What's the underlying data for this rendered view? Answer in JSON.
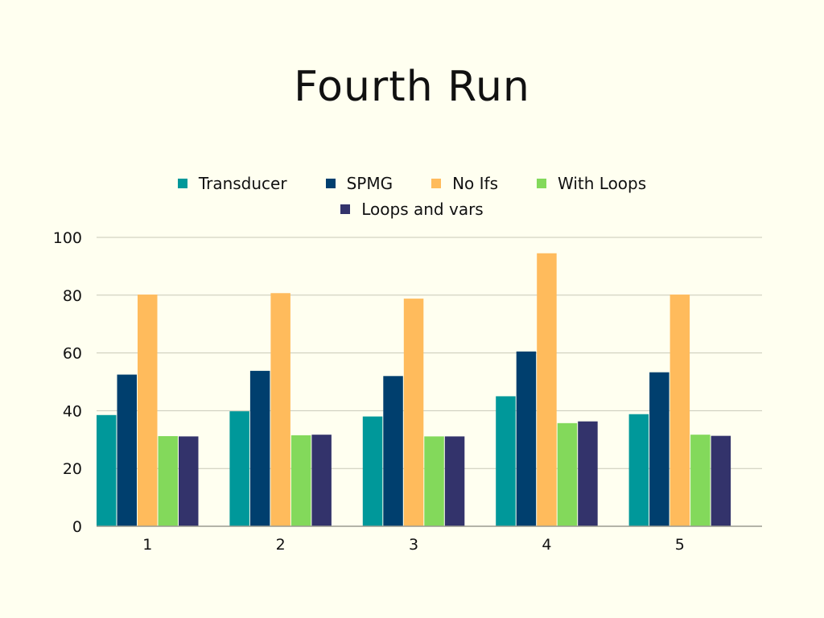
{
  "chart_data": {
    "type": "bar",
    "title": "Fourth Run",
    "xlabel": "",
    "ylabel": "",
    "categories": [
      "1",
      "2",
      "3",
      "4",
      "5"
    ],
    "series": [
      {
        "name": "Transducer",
        "color": "#00989a",
        "values": [
          38.5,
          39.8,
          38.0,
          45.0,
          38.8
        ]
      },
      {
        "name": "SPMG",
        "color": "#003f6e",
        "values": [
          52.5,
          53.8,
          52.0,
          60.5,
          53.3
        ]
      },
      {
        "name": "No Ifs",
        "color": "#ffbb5c",
        "values": [
          80.2,
          80.7,
          78.8,
          94.5,
          80.2
        ]
      },
      {
        "name": "With Loops",
        "color": "#83d95b",
        "values": [
          31.2,
          31.5,
          31.1,
          35.7,
          31.7
        ]
      },
      {
        "name": "Loops and vars",
        "color": "#33336b",
        "values": [
          31.1,
          31.7,
          31.1,
          36.3,
          31.3
        ]
      }
    ],
    "ylim": [
      0,
      100
    ],
    "yticks": [
      "0",
      "20",
      "40",
      "60",
      "80",
      "100"
    ],
    "grid": true,
    "legend_position": "top"
  }
}
